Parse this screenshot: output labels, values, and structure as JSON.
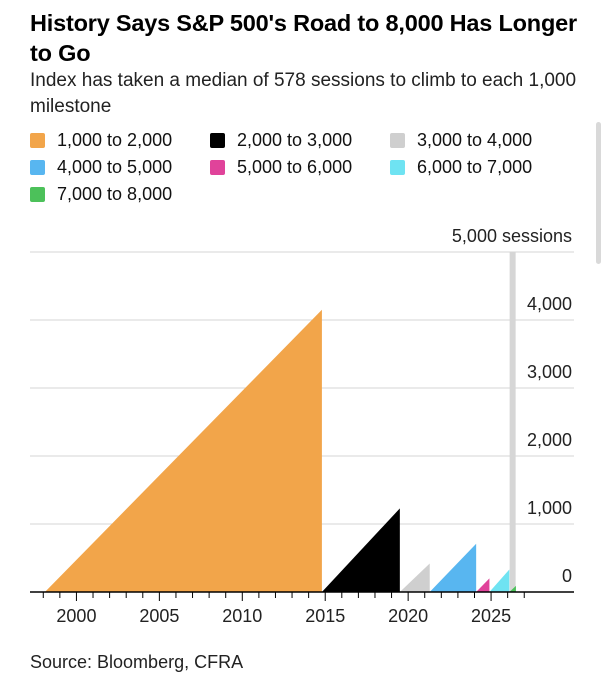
{
  "header": {
    "title": "History Says S&P 500's Road to 8,000 Has Longer to Go",
    "subtitle": "Index has taken a median of 578 sessions to climb to each 1,000 milestone"
  },
  "legend": [
    {
      "label": "1,000 to 2,000",
      "color": "#f2a54a"
    },
    {
      "label": "2,000 to 3,000",
      "color": "#000000"
    },
    {
      "label": "3,000 to 4,000",
      "color": "#cfcfcf"
    },
    {
      "label": "4,000 to 5,000",
      "color": "#58b6f0"
    },
    {
      "label": "5,000 to 6,000",
      "color": "#e0439a"
    },
    {
      "label": "6,000 to 7,000",
      "color": "#6fe3f2"
    },
    {
      "label": "7,000 to 8,000",
      "color": "#4cc15a"
    }
  ],
  "footer": {
    "source": "Source: Bloomberg, CFRA"
  },
  "chart_data": {
    "type": "area",
    "title": "History Says S&P 500's Road to 8,000 Has Longer to Go",
    "subtitle": "Index has taken a median of 578 sessions to climb to each 1,000 milestone",
    "xlabel": "",
    "ylabel": "sessions",
    "xlim": [
      1997.2,
      2030
    ],
    "ylim": [
      0,
      5000
    ],
    "x_ticks": [
      2000,
      2005,
      2010,
      2015,
      2020,
      2025
    ],
    "y_ticks": [
      0,
      1000,
      2000,
      3000,
      4000
    ],
    "y_tick_labels": [
      "0",
      "1,000",
      "2,000",
      "3,000",
      "4,000"
    ],
    "y_top_label": "5,000 sessions",
    "axis_side": "right",
    "grid": true,
    "reference_line": {
      "x": 2026.3,
      "color": "#d6d6d6"
    },
    "series": [
      {
        "name": "1,000 to 2,000",
        "color": "#f2a54a",
        "start": 1998.1,
        "end": 2014.8,
        "peak_sessions": 4150
      },
      {
        "name": "2,000 to 3,000",
        "color": "#000000",
        "start": 2014.8,
        "end": 2019.5,
        "peak_sessions": 1230
      },
      {
        "name": "3,000 to 4,000",
        "color": "#cfcfcf",
        "start": 2019.5,
        "end": 2021.3,
        "peak_sessions": 420
      },
      {
        "name": "4,000 to 5,000",
        "color": "#58b6f0",
        "start": 2021.3,
        "end": 2024.1,
        "peak_sessions": 710
      },
      {
        "name": "5,000 to 6,000",
        "color": "#e0439a",
        "start": 2024.1,
        "end": 2024.9,
        "peak_sessions": 200
      },
      {
        "name": "6,000 to 7,000",
        "color": "#6fe3f2",
        "start": 2024.9,
        "end": 2026.1,
        "peak_sessions": 330
      },
      {
        "name": "7,000 to 8,000",
        "color": "#4cc15a",
        "start": 2026.1,
        "end": 2026.5,
        "peak_sessions": 90
      }
    ]
  }
}
